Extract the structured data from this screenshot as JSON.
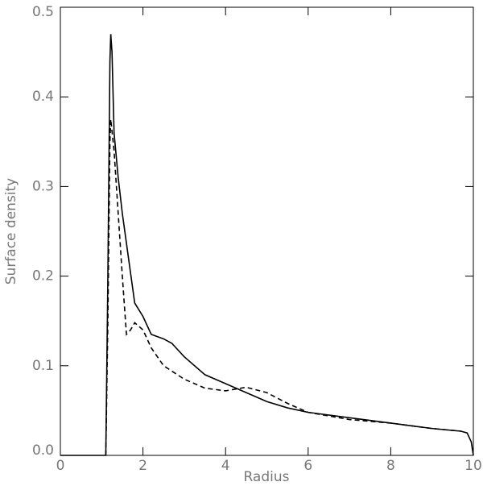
{
  "chart_data": {
    "type": "line",
    "xlabel": "Radius",
    "ylabel": "Surface density",
    "xlim": [
      0,
      10
    ],
    "xticks": [
      0,
      2,
      4,
      6,
      8,
      10
    ],
    "ylim": [
      0,
      0.5
    ],
    "yticks": [
      {
        "value": 0,
        "label": "0.0"
      },
      0.1,
      0.2,
      0.3,
      0.4,
      0.5
    ],
    "series": [
      {
        "color": "#000000",
        "dash": "solid",
        "x": [
          0,
          1.1,
          1.15,
          1.2,
          1.22,
          1.25,
          1.3,
          1.4,
          1.5,
          1.65,
          1.8,
          2.0,
          2.2,
          2.5,
          2.7,
          3.0,
          3.5,
          4.0,
          4.5,
          5.0,
          5.5,
          6.0,
          7.0,
          8.0,
          9.0,
          9.7,
          9.85,
          9.95,
          10.0
        ],
        "values": [
          0,
          0,
          0.2,
          0.44,
          0.47,
          0.45,
          0.36,
          0.31,
          0.27,
          0.22,
          0.17,
          0.155,
          0.135,
          0.13,
          0.125,
          0.11,
          0.09,
          0.08,
          0.07,
          0.06,
          0.053,
          0.048,
          0.042,
          0.036,
          0.03,
          0.027,
          0.025,
          0.015,
          0
        ]
      },
      {
        "color": "#000000",
        "dash": "dashed",
        "x": [
          1.1,
          1.15,
          1.2,
          1.22,
          1.3,
          1.4,
          1.5,
          1.6,
          1.7,
          1.8,
          2.0,
          2.2,
          2.5,
          3.0,
          3.5,
          4.0,
          4.5,
          5.0,
          5.5,
          6.0,
          7.0,
          8.0,
          9.0,
          9.7
        ],
        "values": [
          0,
          0.15,
          0.35,
          0.375,
          0.34,
          0.27,
          0.2,
          0.135,
          0.14,
          0.148,
          0.14,
          0.12,
          0.1,
          0.085,
          0.075,
          0.072,
          0.076,
          0.07,
          0.058,
          0.048,
          0.04,
          0.036,
          0.03,
          0.027
        ]
      }
    ]
  }
}
